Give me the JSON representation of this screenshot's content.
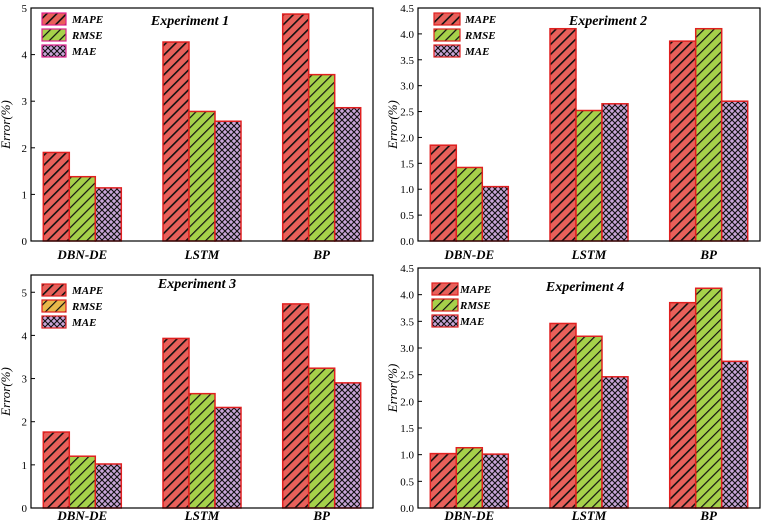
{
  "colors": {
    "mape_fill": "#e8605a",
    "mape_border": "#e02020",
    "rmse_fill": "#a6d14a",
    "rmse_border": "#e02020",
    "mae_fill": "#c9a6d9",
    "mae_border": "#e02020",
    "hatch": "#111111",
    "legend1_border": "#e0208c",
    "legend3_rmse_fill": "#e8b84a"
  },
  "chart_data": [
    {
      "type": "bar",
      "title": "Experiment 1",
      "ylabel": "Error(%)",
      "categories": [
        "DBN-DE",
        "LSTM",
        "BP"
      ],
      "series": [
        {
          "name": "MAPE",
          "values": [
            1.9,
            4.27,
            4.87
          ]
        },
        {
          "name": "RMSE",
          "values": [
            1.38,
            2.78,
            3.57
          ]
        },
        {
          "name": "MAE",
          "values": [
            1.14,
            2.57,
            2.86
          ]
        }
      ],
      "ylim": [
        0,
        5
      ],
      "yticks": [
        0,
        1,
        2,
        3,
        4,
        5
      ],
      "ytick_labels": [
        "0",
        "1",
        "2",
        "3",
        "4",
        "5"
      ]
    },
    {
      "type": "bar",
      "title": "Experiment 2",
      "ylabel": "Error(%)",
      "categories": [
        "DBN-DE",
        "LSTM",
        "BP"
      ],
      "series": [
        {
          "name": "MAPE",
          "values": [
            1.85,
            4.1,
            3.86
          ]
        },
        {
          "name": "RMSE",
          "values": [
            1.42,
            2.52,
            4.1
          ]
        },
        {
          "name": "MAE",
          "values": [
            1.05,
            2.65,
            2.7
          ]
        }
      ],
      "ylim": [
        0,
        4.5
      ],
      "yticks": [
        0,
        0.5,
        1,
        1.5,
        2,
        2.5,
        3,
        3.5,
        4,
        4.5
      ],
      "ytick_labels": [
        "0.0",
        "0.5",
        "1.0",
        "1.5",
        "2.0",
        "2.5",
        "3.0",
        "3.5",
        "4.0",
        "4.5"
      ]
    },
    {
      "type": "bar",
      "title": "Experiment 3",
      "ylabel": "Error(%)",
      "categories": [
        "DBN-DE",
        "LSTM",
        "BP"
      ],
      "series": [
        {
          "name": "MAPE",
          "values": [
            1.76,
            3.93,
            4.73
          ]
        },
        {
          "name": "RMSE",
          "values": [
            1.2,
            2.65,
            3.24
          ]
        },
        {
          "name": "MAE",
          "values": [
            1.02,
            2.33,
            2.9
          ]
        }
      ],
      "ylim": [
        0,
        5.4
      ],
      "yticks": [
        0,
        1,
        2,
        3,
        4,
        5
      ],
      "ytick_labels": [
        "0",
        "1",
        "2",
        "3",
        "4",
        "5"
      ]
    },
    {
      "type": "bar",
      "title": "Experiment 4",
      "ylabel": "Error(%)",
      "categories": [
        "DBN-DE",
        "LSTM",
        "BP"
      ],
      "series": [
        {
          "name": "MAPE",
          "values": [
            1.02,
            3.46,
            3.85
          ]
        },
        {
          "name": "RMSE",
          "values": [
            1.13,
            3.22,
            4.12
          ]
        },
        {
          "name": "MAE",
          "values": [
            1.01,
            2.46,
            2.75
          ]
        }
      ],
      "ylim": [
        0,
        4.5
      ],
      "yticks": [
        0,
        0.5,
        1,
        1.5,
        2,
        2.5,
        3,
        3.5,
        4,
        4.5
      ],
      "ytick_labels": [
        "0.0",
        "0.5",
        "1.0",
        "1.5",
        "2.0",
        "2.5",
        "3.0",
        "3.5",
        "4.0",
        "4.5"
      ]
    }
  ]
}
